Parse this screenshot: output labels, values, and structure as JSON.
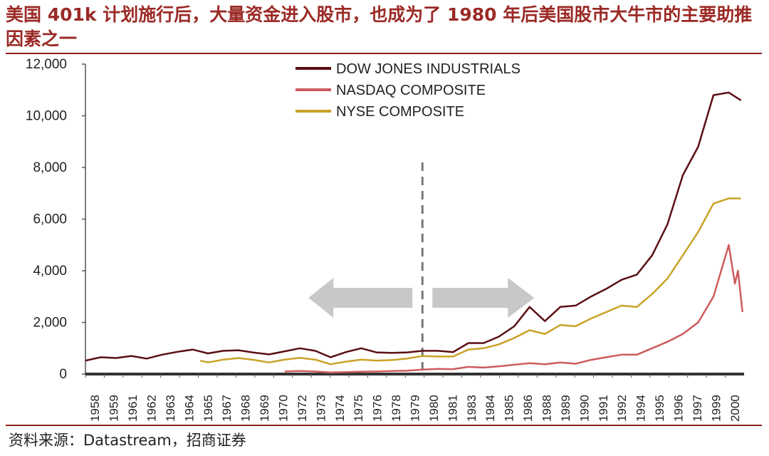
{
  "header": {
    "title": "美国 401k 计划施行后，大量资金进入股市，也成为了 1980 年后美国股市大牛市的主要助推因素之一"
  },
  "footer": {
    "source": "资料来源：Datastream，招商证券"
  },
  "colors": {
    "title": "#9b2a26",
    "rule": "#8c1d1d",
    "dow": "#5a0f14",
    "nasdaq": "#cd5c5c",
    "nyse": "#c9a227",
    "arrow": "#c8c8c8",
    "axis": "#555555",
    "divider": "#777777"
  },
  "chart_data": {
    "type": "line",
    "title": "",
    "xlabel": "",
    "ylabel": "",
    "ylim": [
      0,
      12000
    ],
    "yticks": [
      0,
      2000,
      4000,
      6000,
      8000,
      10000,
      12000
    ],
    "ytick_labels": [
      "0",
      "2,000",
      "4,000",
      "6,000",
      "8,000",
      "10,000",
      "12,000"
    ],
    "xlim": [
      1958,
      2001
    ],
    "x_tick_labels": [
      "1958",
      "1959",
      "1961",
      "1962",
      "1963",
      "1964",
      "1965",
      "1967",
      "1968",
      "1969",
      "1970",
      "1972",
      "1973",
      "1974",
      "1975",
      "1976",
      "1978",
      "1979",
      "1980",
      "1981",
      "1983",
      "1984",
      "1985",
      "1986",
      "1988",
      "1989",
      "1990",
      "1991",
      "1992",
      "1994",
      "1995",
      "1996",
      "1997",
      "1999",
      "2000"
    ],
    "divider_x": 1980,
    "legend_position": "top-center",
    "grid": false,
    "annotations": [
      {
        "type": "arrow-left",
        "label": ""
      },
      {
        "type": "arrow-right",
        "label": ""
      }
    ],
    "series": [
      {
        "name": "DOW JONES INDUSTRIALS",
        "color": "#5a0f14",
        "points": [
          [
            1958,
            520
          ],
          [
            1959,
            650
          ],
          [
            1960,
            620
          ],
          [
            1961,
            700
          ],
          [
            1962,
            600
          ],
          [
            1963,
            750
          ],
          [
            1964,
            860
          ],
          [
            1965,
            950
          ],
          [
            1966,
            800
          ],
          [
            1967,
            900
          ],
          [
            1968,
            920
          ],
          [
            1969,
            830
          ],
          [
            1970,
            760
          ],
          [
            1971,
            880
          ],
          [
            1972,
            1000
          ],
          [
            1973,
            900
          ],
          [
            1974,
            650
          ],
          [
            1975,
            850
          ],
          [
            1976,
            1000
          ],
          [
            1977,
            840
          ],
          [
            1978,
            820
          ],
          [
            1979,
            840
          ],
          [
            1980,
            900
          ],
          [
            1981,
            900
          ],
          [
            1982,
            850
          ],
          [
            1983,
            1200
          ],
          [
            1984,
            1200
          ],
          [
            1985,
            1450
          ],
          [
            1986,
            1850
          ],
          [
            1987,
            2600
          ],
          [
            1988,
            2050
          ],
          [
            1989,
            2600
          ],
          [
            1990,
            2650
          ],
          [
            1991,
            3000
          ],
          [
            1992,
            3300
          ],
          [
            1993,
            3650
          ],
          [
            1994,
            3850
          ],
          [
            1995,
            4600
          ],
          [
            1996,
            5800
          ],
          [
            1997,
            7700
          ],
          [
            1998,
            8800
          ],
          [
            1999,
            10800
          ],
          [
            2000,
            10900
          ],
          [
            2000.8,
            10600
          ]
        ]
      },
      {
        "name": "NASDAQ COMPOSITE",
        "color": "#cd5c5c",
        "points": [
          [
            1971,
            100
          ],
          [
            1972,
            120
          ],
          [
            1973,
            100
          ],
          [
            1974,
            60
          ],
          [
            1975,
            75
          ],
          [
            1976,
            95
          ],
          [
            1977,
            100
          ],
          [
            1978,
            115
          ],
          [
            1979,
            130
          ],
          [
            1980,
            170
          ],
          [
            1981,
            200
          ],
          [
            1982,
            190
          ],
          [
            1983,
            280
          ],
          [
            1984,
            250
          ],
          [
            1985,
            300
          ],
          [
            1986,
            360
          ],
          [
            1987,
            420
          ],
          [
            1988,
            380
          ],
          [
            1989,
            450
          ],
          [
            1990,
            400
          ],
          [
            1991,
            550
          ],
          [
            1992,
            650
          ],
          [
            1993,
            750
          ],
          [
            1994,
            750
          ],
          [
            1995,
            1000
          ],
          [
            1996,
            1250
          ],
          [
            1997,
            1550
          ],
          [
            1998,
            2000
          ],
          [
            1999,
            3000
          ],
          [
            2000,
            5000
          ],
          [
            2000.4,
            3500
          ],
          [
            2000.6,
            4000
          ],
          [
            2000.9,
            2400
          ]
        ]
      },
      {
        "name": "NYSE COMPOSITE",
        "color": "#c9a227",
        "points": [
          [
            1965.5,
            520
          ],
          [
            1966,
            450
          ],
          [
            1967,
            560
          ],
          [
            1968,
            620
          ],
          [
            1969,
            550
          ],
          [
            1970,
            450
          ],
          [
            1971,
            560
          ],
          [
            1972,
            630
          ],
          [
            1973,
            560
          ],
          [
            1974,
            380
          ],
          [
            1975,
            480
          ],
          [
            1976,
            560
          ],
          [
            1977,
            520
          ],
          [
            1978,
            540
          ],
          [
            1979,
            600
          ],
          [
            1980,
            700
          ],
          [
            1981,
            680
          ],
          [
            1982,
            680
          ],
          [
            1983,
            950
          ],
          [
            1984,
            1000
          ],
          [
            1985,
            1150
          ],
          [
            1986,
            1400
          ],
          [
            1987,
            1700
          ],
          [
            1988,
            1550
          ],
          [
            1989,
            1900
          ],
          [
            1990,
            1850
          ],
          [
            1991,
            2150
          ],
          [
            1992,
            2400
          ],
          [
            1993,
            2650
          ],
          [
            1994,
            2600
          ],
          [
            1995,
            3100
          ],
          [
            1996,
            3700
          ],
          [
            1997,
            4600
          ],
          [
            1998,
            5500
          ],
          [
            1999,
            6600
          ],
          [
            2000,
            6800
          ],
          [
            2000.8,
            6800
          ]
        ]
      }
    ]
  }
}
